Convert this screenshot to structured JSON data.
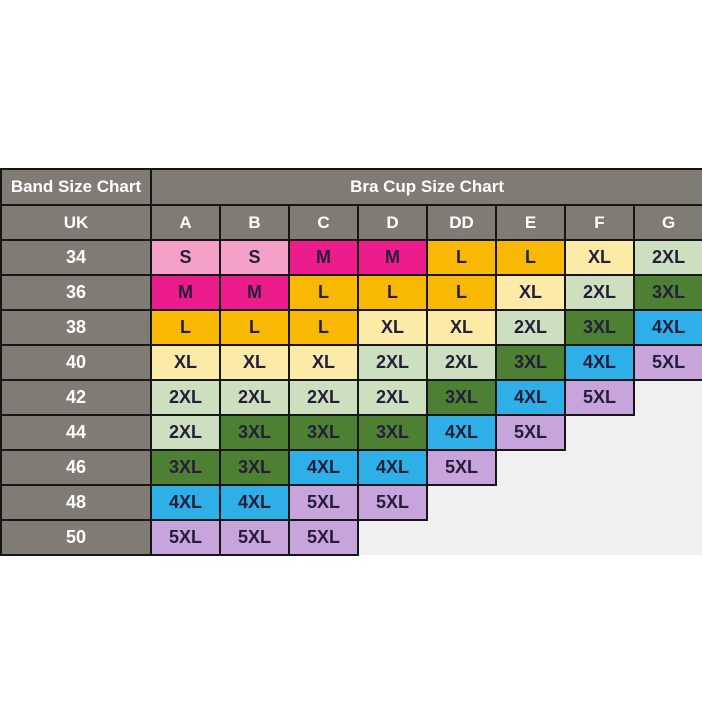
{
  "titles": {
    "band": "Band Size Chart",
    "cup": "Bra Cup Size Chart"
  },
  "colors": {
    "page_bg": "#ffffff",
    "header_bg": "#817b76",
    "header_text": "#ffffff",
    "border": "#161616",
    "cell_text": "#241e3a",
    "empty_bg": "#f1f0f1"
  },
  "size_colors": {
    "S": "#f4a0c8",
    "M": "#ec1c8d",
    "L": "#f8b804",
    "XL": "#fbeba6",
    "2XL": "#cce0bf",
    "3XL": "#4e8033",
    "4XL": "#2fafe8",
    "5XL": "#c7a4dc"
  },
  "chart_data": {
    "type": "table",
    "title": "Band Size Chart / Bra Cup Size Chart",
    "columns": [
      "UK",
      "A",
      "B",
      "C",
      "D",
      "DD",
      "E",
      "F",
      "G"
    ],
    "rows": [
      [
        "34",
        "S",
        "S",
        "M",
        "M",
        "L",
        "L",
        "XL",
        "2XL"
      ],
      [
        "36",
        "M",
        "M",
        "L",
        "L",
        "L",
        "XL",
        "2XL",
        "3XL"
      ],
      [
        "38",
        "L",
        "L",
        "L",
        "XL",
        "XL",
        "2XL",
        "3XL",
        "4XL"
      ],
      [
        "40",
        "XL",
        "XL",
        "XL",
        "2XL",
        "2XL",
        "3XL",
        "4XL",
        "5XL"
      ],
      [
        "42",
        "2XL",
        "2XL",
        "2XL",
        "2XL",
        "3XL",
        "4XL",
        "5XL",
        ""
      ],
      [
        "44",
        "2XL",
        "3XL",
        "3XL",
        "3XL",
        "4XL",
        "5XL",
        "",
        ""
      ],
      [
        "46",
        "3XL",
        "3XL",
        "4XL",
        "4XL",
        "5XL",
        "",
        "",
        ""
      ],
      [
        "48",
        "4XL",
        "4XL",
        "5XL",
        "5XL",
        "",
        "",
        "",
        ""
      ],
      [
        "50",
        "5XL",
        "5XL",
        "5XL",
        "",
        "",
        "",
        "",
        ""
      ]
    ]
  }
}
